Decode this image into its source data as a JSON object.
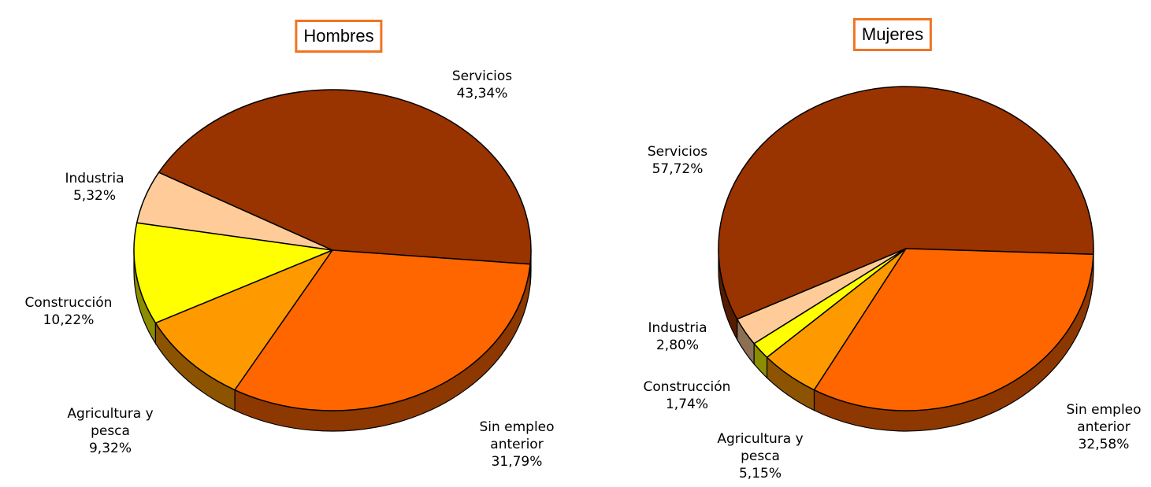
{
  "chart_data": [
    {
      "type": "pie3d",
      "title": "Hombres",
      "categories": [
        "Servicios",
        "Industria",
        "Construcción",
        "Agricultura y pesca",
        "Sin empleo anterior"
      ],
      "values": [
        43.34,
        5.32,
        10.22,
        9.32,
        31.79
      ],
      "value_labels": [
        "43,34%",
        "5,32%",
        "10,22%",
        "9,32%",
        "31,79%"
      ],
      "colors": [
        "#993300",
        "#ffcc99",
        "#ffff00",
        "#ff9900",
        "#ff6600"
      ]
    },
    {
      "type": "pie3d",
      "title": "Mujeres",
      "categories": [
        "Servicios",
        "Industria",
        "Construcción",
        "Agricultura y pesca",
        "Sin empleo anterior"
      ],
      "values": [
        57.72,
        2.8,
        1.74,
        5.15,
        32.58
      ],
      "value_labels": [
        "57,72%",
        "2,80%",
        "1,74%",
        "5,15%",
        "32,58%"
      ],
      "colors": [
        "#993300",
        "#ffcc99",
        "#ffff00",
        "#ff9900",
        "#ff6600"
      ]
    }
  ]
}
